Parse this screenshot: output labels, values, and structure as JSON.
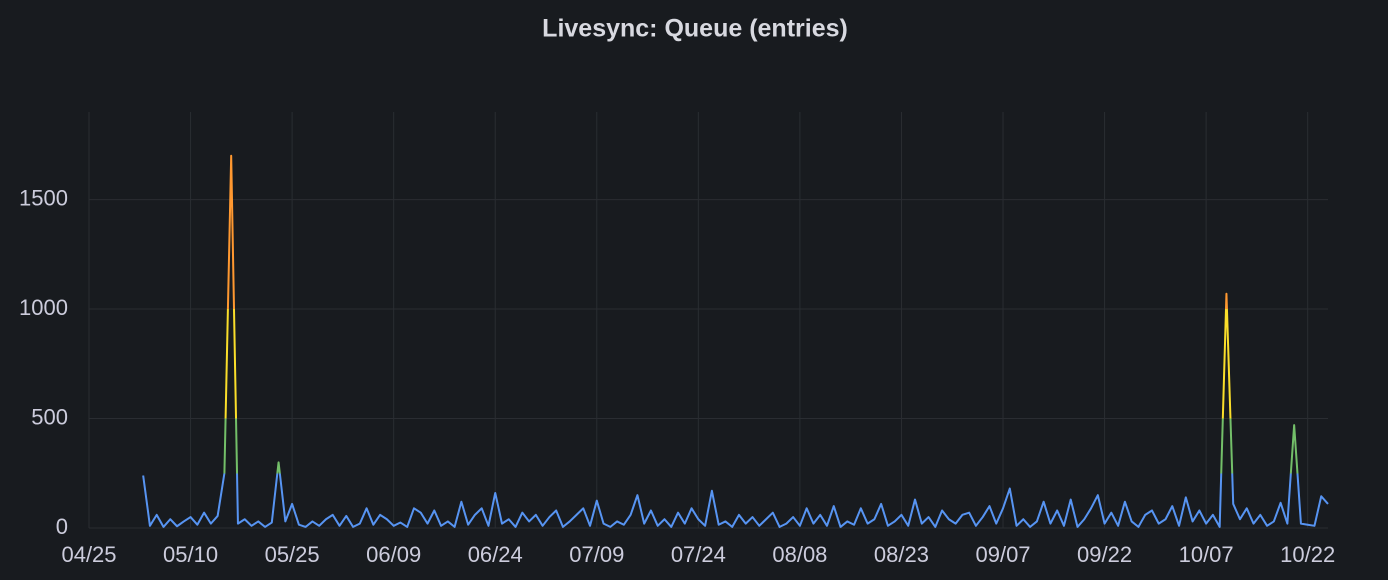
{
  "chart_data": {
    "type": "line",
    "title": "Livesync: Queue (entries)",
    "x": [
      "05/03",
      "05/04",
      "05/05",
      "05/06",
      "05/07",
      "05/08",
      "05/09",
      "05/10",
      "05/11",
      "05/12",
      "05/13",
      "05/14",
      "05/15",
      "05/16",
      "05/17",
      "05/18",
      "05/19",
      "05/20",
      "05/21",
      "05/22",
      "05/23",
      "05/24",
      "05/25",
      "05/26",
      "05/27",
      "05/28",
      "05/29",
      "05/30",
      "05/31",
      "06/01",
      "06/02",
      "06/03",
      "06/04",
      "06/05",
      "06/06",
      "06/07",
      "06/08",
      "06/09",
      "06/10",
      "06/11",
      "06/12",
      "06/13",
      "06/14",
      "06/15",
      "06/16",
      "06/17",
      "06/18",
      "06/19",
      "06/20",
      "06/21",
      "06/22",
      "06/23",
      "06/24",
      "06/25",
      "06/26",
      "06/27",
      "06/28",
      "06/29",
      "06/30",
      "07/01",
      "07/02",
      "07/03",
      "07/04",
      "07/05",
      "07/06",
      "07/07",
      "07/08",
      "07/09",
      "07/10",
      "07/11",
      "07/12",
      "07/13",
      "07/14",
      "07/15",
      "07/16",
      "07/17",
      "07/18",
      "07/19",
      "07/20",
      "07/21",
      "07/22",
      "07/23",
      "07/24",
      "07/25",
      "07/26",
      "07/27",
      "07/28",
      "07/29",
      "07/30",
      "07/31",
      "08/01",
      "08/02",
      "08/03",
      "08/04",
      "08/05",
      "08/06",
      "08/07",
      "08/08",
      "08/09",
      "08/10",
      "08/11",
      "08/12",
      "08/13",
      "08/14",
      "08/15",
      "08/16",
      "08/17",
      "08/18",
      "08/19",
      "08/20",
      "08/21",
      "08/22",
      "08/23",
      "08/24",
      "08/25",
      "08/26",
      "08/27",
      "08/28",
      "08/29",
      "08/30",
      "08/31",
      "09/01",
      "09/02",
      "09/03",
      "09/04",
      "09/05",
      "09/06",
      "09/07",
      "09/08",
      "09/09",
      "09/10",
      "09/11",
      "09/12",
      "09/13",
      "09/14",
      "09/15",
      "09/16",
      "09/17",
      "09/18",
      "09/19",
      "09/20",
      "09/21",
      "09/22",
      "09/23",
      "09/24",
      "09/25",
      "09/26",
      "09/27",
      "09/28",
      "09/29",
      "09/30",
      "10/01",
      "10/02",
      "10/03",
      "10/04",
      "10/05",
      "10/06",
      "10/07",
      "10/08",
      "10/09",
      "10/10",
      "10/11",
      "10/12",
      "10/13",
      "10/14",
      "10/15",
      "10/16",
      "10/17",
      "10/18",
      "10/19",
      "10/20",
      "10/21",
      "10/22",
      "10/23",
      "10/24",
      "10/25"
    ],
    "values": [
      240,
      10,
      60,
      5,
      40,
      8,
      30,
      50,
      15,
      70,
      20,
      55,
      250,
      1700,
      20,
      40,
      10,
      30,
      5,
      25,
      300,
      30,
      110,
      15,
      5,
      30,
      10,
      40,
      60,
      10,
      55,
      5,
      20,
      90,
      15,
      60,
      40,
      10,
      25,
      5,
      90,
      70,
      20,
      80,
      10,
      30,
      5,
      120,
      15,
      60,
      90,
      10,
      160,
      20,
      40,
      5,
      70,
      30,
      60,
      10,
      50,
      80,
      5,
      30,
      60,
      90,
      10,
      125,
      20,
      5,
      30,
      15,
      60,
      150,
      20,
      80,
      10,
      40,
      5,
      70,
      20,
      90,
      40,
      10,
      170,
      15,
      30,
      5,
      60,
      20,
      50,
      10,
      40,
      70,
      5,
      20,
      50,
      10,
      90,
      20,
      60,
      10,
      100,
      5,
      30,
      15,
      90,
      20,
      40,
      110,
      10,
      30,
      60,
      10,
      130,
      20,
      50,
      5,
      80,
      40,
      20,
      60,
      70,
      10,
      50,
      100,
      20,
      90,
      180,
      10,
      40,
      5,
      30,
      120,
      20,
      80,
      10,
      130,
      5,
      40,
      90,
      150,
      20,
      70,
      10,
      120,
      30,
      5,
      60,
      80,
      20,
      40,
      100,
      10,
      140,
      30,
      80,
      20,
      60,
      5,
      1070,
      110,
      40,
      90,
      20,
      60,
      10,
      30,
      115,
      20,
      470,
      20,
      15,
      10,
      145,
      110
    ],
    "thresholds": [
      {
        "value": 0,
        "color": "#5794f2"
      },
      {
        "value": 250,
        "color": "#73bf69"
      },
      {
        "value": 500,
        "color": "#fade2a"
      },
      {
        "value": 1000,
        "color": "#ff9830"
      }
    ],
    "xlim": [
      "04/25",
      "10/25"
    ],
    "xticks": [
      "04/25",
      "05/10",
      "05/25",
      "06/09",
      "06/24",
      "07/09",
      "07/24",
      "08/08",
      "08/23",
      "09/07",
      "09/22",
      "10/07",
      "10/22"
    ],
    "ylim": [
      0,
      1900
    ],
    "yticks": [
      0,
      500,
      1000,
      1500
    ],
    "grid": true
  }
}
